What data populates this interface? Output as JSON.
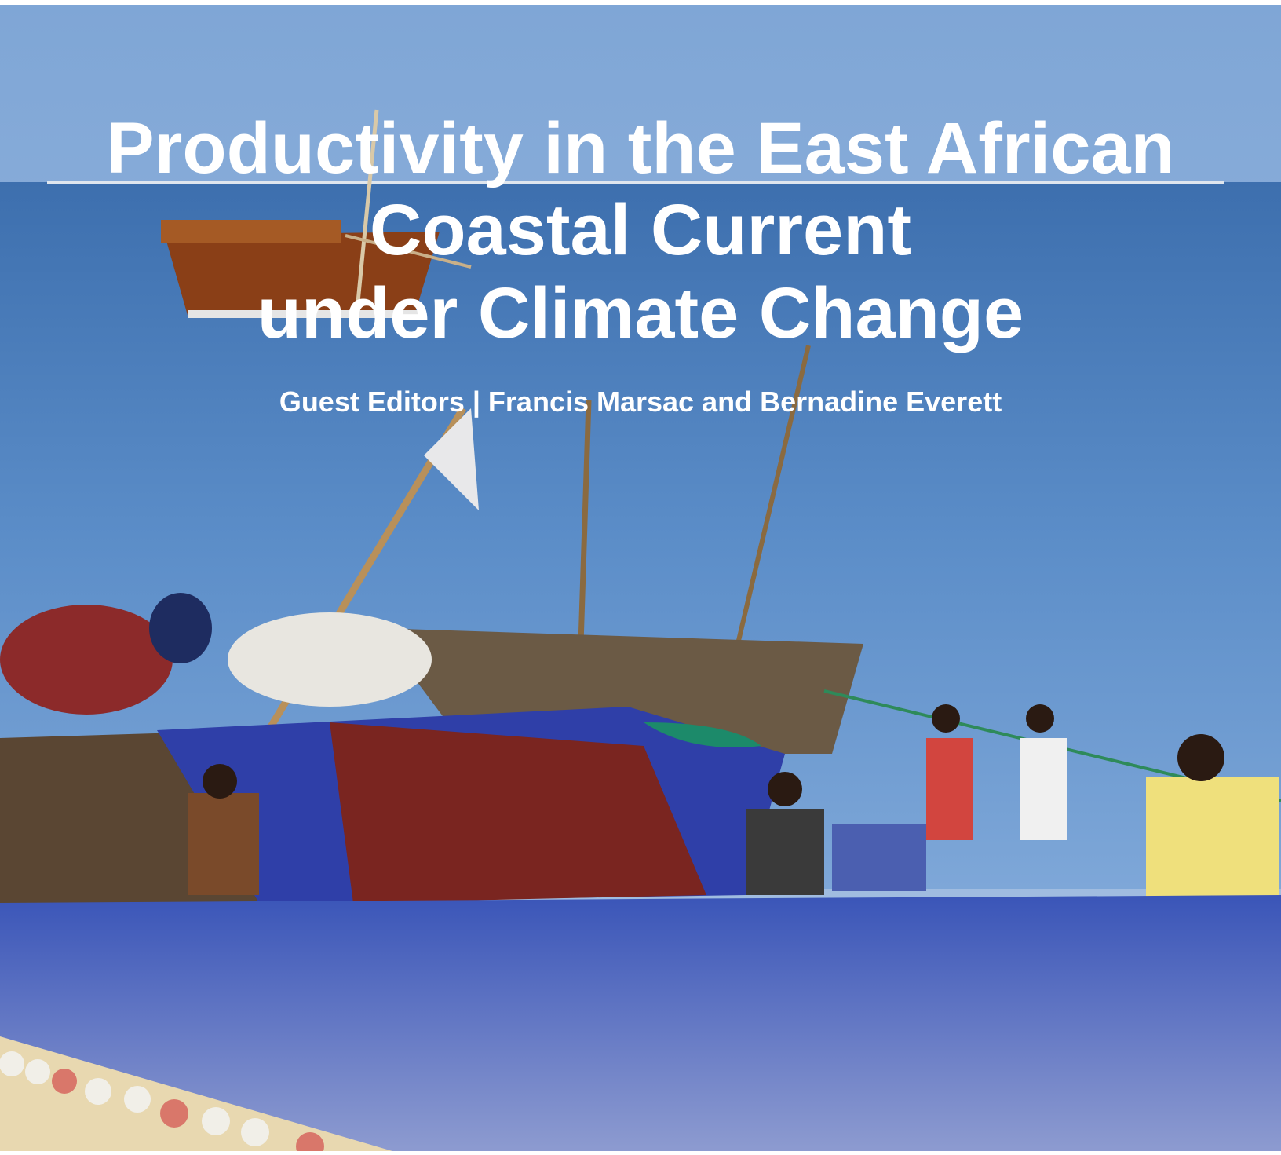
{
  "cover": {
    "title_lines": [
      "Productivity in the East African",
      "Coastal Current",
      "under Climate Change"
    ],
    "subtitle": "Guest Editors | Francis Marsac and Bernadine Everett"
  }
}
